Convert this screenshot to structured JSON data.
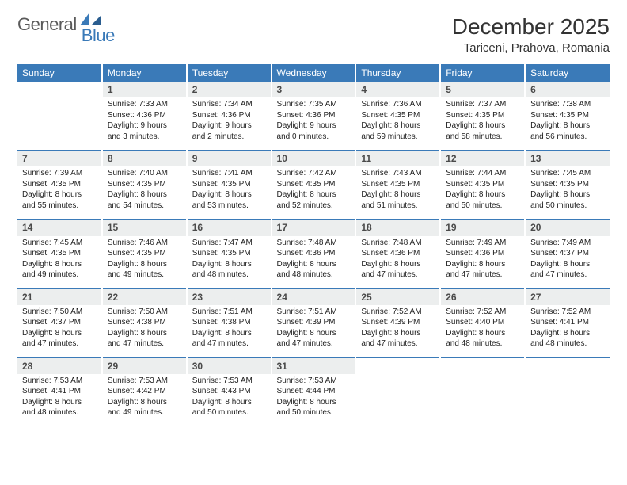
{
  "brand": {
    "part1": "General",
    "part2": "Blue"
  },
  "title": "December 2025",
  "location": "Tariceni, Prahova, Romania",
  "colors": {
    "header_bg": "#3a7ab8",
    "header_text": "#ffffff",
    "daynum_bg": "#eceeee",
    "rule": "#3a7ab8",
    "logo_gray": "#5a5a5a",
    "logo_blue": "#3a7ab8"
  },
  "day_headers": [
    "Sunday",
    "Monday",
    "Tuesday",
    "Wednesday",
    "Thursday",
    "Friday",
    "Saturday"
  ],
  "weeks": [
    [
      {
        "n": "",
        "sr": "",
        "ss": "",
        "dl": "",
        "empty": true
      },
      {
        "n": "1",
        "sr": "Sunrise: 7:33 AM",
        "ss": "Sunset: 4:36 PM",
        "dl": "Daylight: 9 hours and 3 minutes."
      },
      {
        "n": "2",
        "sr": "Sunrise: 7:34 AM",
        "ss": "Sunset: 4:36 PM",
        "dl": "Daylight: 9 hours and 2 minutes."
      },
      {
        "n": "3",
        "sr": "Sunrise: 7:35 AM",
        "ss": "Sunset: 4:36 PM",
        "dl": "Daylight: 9 hours and 0 minutes."
      },
      {
        "n": "4",
        "sr": "Sunrise: 7:36 AM",
        "ss": "Sunset: 4:35 PM",
        "dl": "Daylight: 8 hours and 59 minutes."
      },
      {
        "n": "5",
        "sr": "Sunrise: 7:37 AM",
        "ss": "Sunset: 4:35 PM",
        "dl": "Daylight: 8 hours and 58 minutes."
      },
      {
        "n": "6",
        "sr": "Sunrise: 7:38 AM",
        "ss": "Sunset: 4:35 PM",
        "dl": "Daylight: 8 hours and 56 minutes."
      }
    ],
    [
      {
        "n": "7",
        "sr": "Sunrise: 7:39 AM",
        "ss": "Sunset: 4:35 PM",
        "dl": "Daylight: 8 hours and 55 minutes."
      },
      {
        "n": "8",
        "sr": "Sunrise: 7:40 AM",
        "ss": "Sunset: 4:35 PM",
        "dl": "Daylight: 8 hours and 54 minutes."
      },
      {
        "n": "9",
        "sr": "Sunrise: 7:41 AM",
        "ss": "Sunset: 4:35 PM",
        "dl": "Daylight: 8 hours and 53 minutes."
      },
      {
        "n": "10",
        "sr": "Sunrise: 7:42 AM",
        "ss": "Sunset: 4:35 PM",
        "dl": "Daylight: 8 hours and 52 minutes."
      },
      {
        "n": "11",
        "sr": "Sunrise: 7:43 AM",
        "ss": "Sunset: 4:35 PM",
        "dl": "Daylight: 8 hours and 51 minutes."
      },
      {
        "n": "12",
        "sr": "Sunrise: 7:44 AM",
        "ss": "Sunset: 4:35 PM",
        "dl": "Daylight: 8 hours and 50 minutes."
      },
      {
        "n": "13",
        "sr": "Sunrise: 7:45 AM",
        "ss": "Sunset: 4:35 PM",
        "dl": "Daylight: 8 hours and 50 minutes."
      }
    ],
    [
      {
        "n": "14",
        "sr": "Sunrise: 7:45 AM",
        "ss": "Sunset: 4:35 PM",
        "dl": "Daylight: 8 hours and 49 minutes."
      },
      {
        "n": "15",
        "sr": "Sunrise: 7:46 AM",
        "ss": "Sunset: 4:35 PM",
        "dl": "Daylight: 8 hours and 49 minutes."
      },
      {
        "n": "16",
        "sr": "Sunrise: 7:47 AM",
        "ss": "Sunset: 4:35 PM",
        "dl": "Daylight: 8 hours and 48 minutes."
      },
      {
        "n": "17",
        "sr": "Sunrise: 7:48 AM",
        "ss": "Sunset: 4:36 PM",
        "dl": "Daylight: 8 hours and 48 minutes."
      },
      {
        "n": "18",
        "sr": "Sunrise: 7:48 AM",
        "ss": "Sunset: 4:36 PM",
        "dl": "Daylight: 8 hours and 47 minutes."
      },
      {
        "n": "19",
        "sr": "Sunrise: 7:49 AM",
        "ss": "Sunset: 4:36 PM",
        "dl": "Daylight: 8 hours and 47 minutes."
      },
      {
        "n": "20",
        "sr": "Sunrise: 7:49 AM",
        "ss": "Sunset: 4:37 PM",
        "dl": "Daylight: 8 hours and 47 minutes."
      }
    ],
    [
      {
        "n": "21",
        "sr": "Sunrise: 7:50 AM",
        "ss": "Sunset: 4:37 PM",
        "dl": "Daylight: 8 hours and 47 minutes."
      },
      {
        "n": "22",
        "sr": "Sunrise: 7:50 AM",
        "ss": "Sunset: 4:38 PM",
        "dl": "Daylight: 8 hours and 47 minutes."
      },
      {
        "n": "23",
        "sr": "Sunrise: 7:51 AM",
        "ss": "Sunset: 4:38 PM",
        "dl": "Daylight: 8 hours and 47 minutes."
      },
      {
        "n": "24",
        "sr": "Sunrise: 7:51 AM",
        "ss": "Sunset: 4:39 PM",
        "dl": "Daylight: 8 hours and 47 minutes."
      },
      {
        "n": "25",
        "sr": "Sunrise: 7:52 AM",
        "ss": "Sunset: 4:39 PM",
        "dl": "Daylight: 8 hours and 47 minutes."
      },
      {
        "n": "26",
        "sr": "Sunrise: 7:52 AM",
        "ss": "Sunset: 4:40 PM",
        "dl": "Daylight: 8 hours and 48 minutes."
      },
      {
        "n": "27",
        "sr": "Sunrise: 7:52 AM",
        "ss": "Sunset: 4:41 PM",
        "dl": "Daylight: 8 hours and 48 minutes."
      }
    ],
    [
      {
        "n": "28",
        "sr": "Sunrise: 7:53 AM",
        "ss": "Sunset: 4:41 PM",
        "dl": "Daylight: 8 hours and 48 minutes."
      },
      {
        "n": "29",
        "sr": "Sunrise: 7:53 AM",
        "ss": "Sunset: 4:42 PM",
        "dl": "Daylight: 8 hours and 49 minutes."
      },
      {
        "n": "30",
        "sr": "Sunrise: 7:53 AM",
        "ss": "Sunset: 4:43 PM",
        "dl": "Daylight: 8 hours and 50 minutes."
      },
      {
        "n": "31",
        "sr": "Sunrise: 7:53 AM",
        "ss": "Sunset: 4:44 PM",
        "dl": "Daylight: 8 hours and 50 minutes."
      },
      {
        "n": "",
        "sr": "",
        "ss": "",
        "dl": "",
        "empty": true
      },
      {
        "n": "",
        "sr": "",
        "ss": "",
        "dl": "",
        "empty": true
      },
      {
        "n": "",
        "sr": "",
        "ss": "",
        "dl": "",
        "empty": true
      }
    ]
  ]
}
